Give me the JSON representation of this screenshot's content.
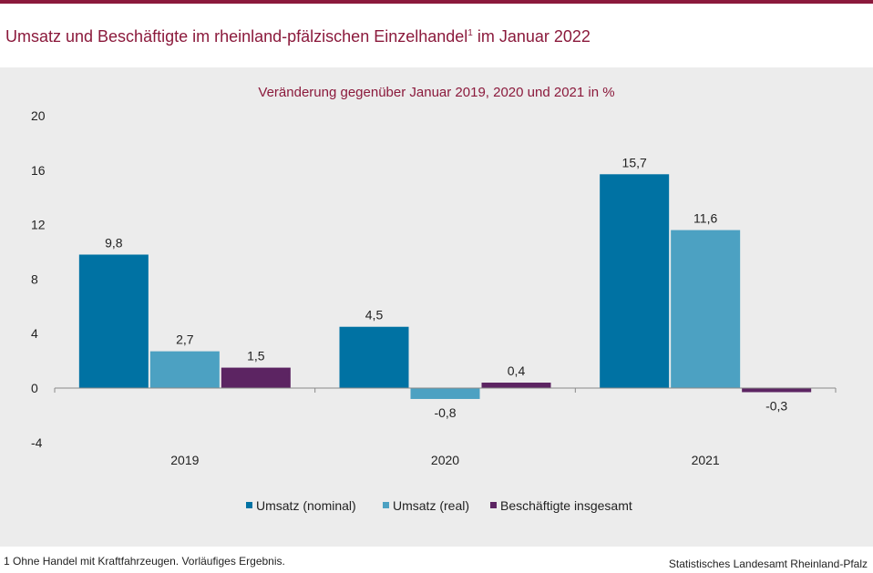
{
  "header": {
    "title": "Umsatz und Beschäftigte im rheinland-pfälzischen Einzelhandel",
    "title_sup": "1",
    "title_suffix": " im Januar 2022"
  },
  "footer": {
    "footnote": "1 Ohne Handel mit Kraftfahrzeugen.  Vorläufiges Ergebnis.",
    "source": "Statistisches Landesamt Rheinland-Pfalz"
  },
  "colors": {
    "accent": "#8b1a3c",
    "nominal": "#0072a3",
    "real": "#4ca1c2",
    "employees": "#5c2462",
    "panel": "#ececec"
  },
  "chart_data": {
    "type": "bar",
    "title": "",
    "subtitle": "Veränderung gegenüber Januar 2019, 2020 und 2021 in %",
    "xlabel": "",
    "ylabel": "",
    "categories": [
      "2019",
      "2020",
      "2021"
    ],
    "ylim": [
      -4,
      20
    ],
    "yticks": [
      -4,
      0,
      4,
      8,
      12,
      16,
      20
    ],
    "grid": false,
    "legend_position": "bottom-center",
    "series": [
      {
        "name": "Umsatz (nominal)",
        "values": [
          9.8,
          4.5,
          15.7
        ],
        "labels": [
          "9,8",
          "4,5",
          "15,7"
        ]
      },
      {
        "name": "Umsatz (real)",
        "values": [
          2.7,
          -0.8,
          11.6
        ],
        "labels": [
          "2,7",
          "-0,8",
          "11,6"
        ]
      },
      {
        "name": "Beschäftigte insgesamt",
        "values": [
          1.5,
          0.4,
          -0.3
        ],
        "labels": [
          "1,5",
          "0,4",
          "-0,3"
        ]
      }
    ]
  }
}
